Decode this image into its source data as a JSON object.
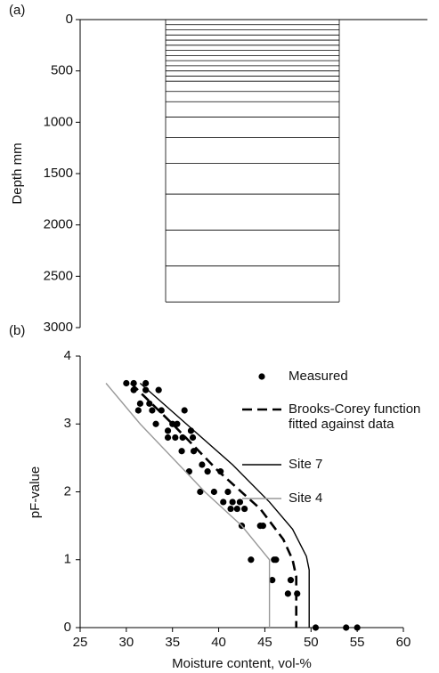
{
  "chart_data": [
    {
      "type": "layers",
      "panel": "(a)",
      "ylabel": "Depth mm",
      "ylim": [
        0,
        3000
      ],
      "yticks": [
        0,
        500,
        1000,
        1500,
        2000,
        2500,
        3000
      ],
      "layer_depths": [
        0,
        50,
        100,
        150,
        200,
        250,
        300,
        350,
        400,
        450,
        500,
        550,
        600,
        700,
        800,
        950,
        1150,
        1400,
        1700,
        2050,
        2400,
        2750
      ]
    },
    {
      "type": "line",
      "panel": "(b)",
      "xlabel": "Moisture content, vol-%",
      "ylabel": "pF-value",
      "xlim": [
        25,
        60
      ],
      "xticks": [
        25,
        30,
        35,
        40,
        45,
        50,
        55,
        60
      ],
      "ylim": [
        0,
        4
      ],
      "yticks": [
        0,
        1,
        2,
        3,
        4
      ],
      "series": [
        {
          "name": "Measured",
          "type": "scatter",
          "color": "#000000",
          "x": [
            30,
            30.8,
            32.1,
            30.8,
            32.1,
            33.5,
            31.5,
            32.5,
            31.3,
            32.8,
            33.2,
            33.8,
            34.5,
            35,
            35.5,
            36.3,
            34.5,
            35.3,
            36.1,
            37,
            37.2,
            36,
            37.3,
            38.2,
            36.8,
            38,
            38.8,
            39.5,
            40.2,
            41,
            40.5,
            41.5,
            42.3,
            41.3,
            42,
            42.8,
            42.5,
            44.5,
            44.8,
            43.5,
            46,
            46.2,
            45.8,
            47.8,
            47.5,
            48.5,
            50.5,
            53.8,
            55
          ],
          "values": [
            3.6,
            3.6,
            3.6,
            3.5,
            3.5,
            3.5,
            3.3,
            3.3,
            3.2,
            3.2,
            3.0,
            3.2,
            2.9,
            3.0,
            3.0,
            3.2,
            2.8,
            2.8,
            2.8,
            2.9,
            2.8,
            2.6,
            2.6,
            2.4,
            2.3,
            2.0,
            2.3,
            2.0,
            2.3,
            2.0,
            1.85,
            1.85,
            1.85,
            1.75,
            1.75,
            1.75,
            1.5,
            1.5,
            1.5,
            1.0,
            1.0,
            1.0,
            0.7,
            0.7,
            0.5,
            0.5,
            0,
            0,
            0
          ]
        },
        {
          "name": "Brooks-Corey function\nfitted against data",
          "type": "dashed",
          "color": "#000000",
          "x": [
            30.5,
            35,
            40,
            44.5,
            47,
            48,
            48.4,
            48.4
          ],
          "values": [
            3.6,
            3.0,
            2.3,
            1.75,
            1.3,
            1.0,
            0.75,
            0
          ]
        },
        {
          "name": "Site 7",
          "type": "solid",
          "color": "#000000",
          "x": [
            31.5,
            36.5,
            41.5,
            45.5,
            48,
            49.5,
            49.8,
            49.8
          ],
          "values": [
            3.6,
            3.0,
            2.4,
            1.85,
            1.45,
            1.05,
            0.85,
            0
          ]
        },
        {
          "name": "Site 4",
          "type": "solid",
          "color": "#999999",
          "x": [
            27.8,
            31.5,
            38.5,
            42.5,
            45.5,
            45.5
          ],
          "values": [
            3.6,
            3.0,
            2.0,
            1.5,
            1.0,
            0
          ]
        }
      ]
    }
  ]
}
